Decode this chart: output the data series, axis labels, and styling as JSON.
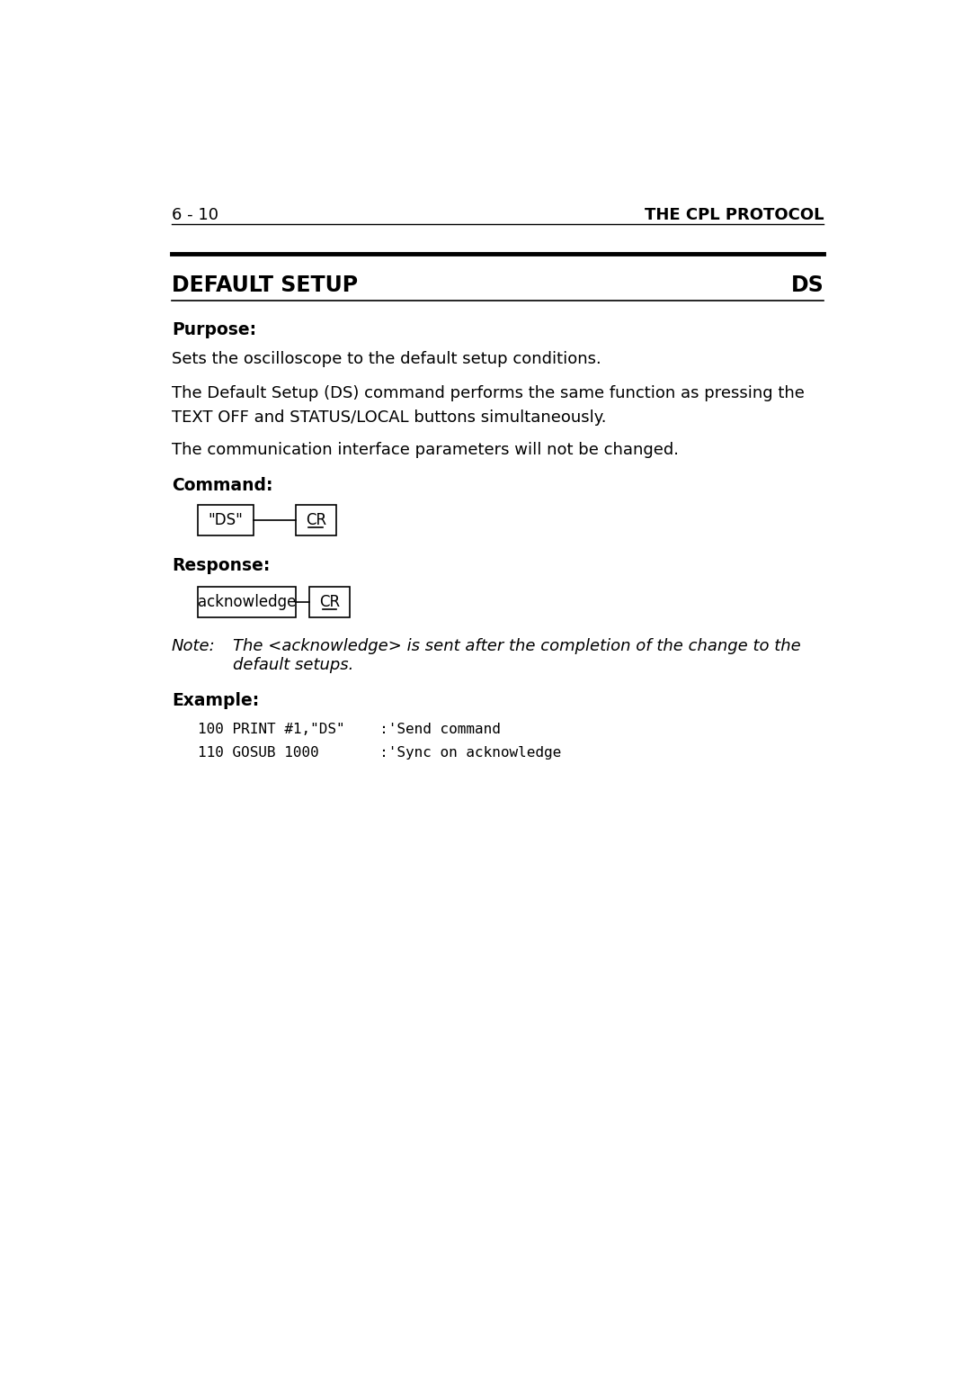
{
  "page_num": "6 - 10",
  "page_header_right": "THE CPL PROTOCOL",
  "section_title": "DEFAULT SETUP",
  "section_code": "DS",
  "purpose_label": "Purpose:",
  "purpose_text1": "Sets the oscilloscope to the default setup conditions.",
  "purpose_text2": "The Default Setup (DS) command performs the same function as pressing the\nTEXT OFF and STATUS/LOCAL buttons simultaneously.",
  "purpose_text3": "The communication interface parameters will not be changed.",
  "command_label": "Command:",
  "cmd_box1_text": "\"DS\"",
  "cmd_box2_text": "CR",
  "response_label": "Response:",
  "resp_box1_text": "acknowledge",
  "resp_box2_text": "CR",
  "note_label": "Note:",
  "note_text_line1": "The <acknowledge> is sent after the completion of the change to the",
  "note_text_line2": "default setups.",
  "example_label": "Example:",
  "example_line1": "100 PRINT #1,\"DS\"    :'Send command",
  "example_line2": "110 GOSUB 1000       :'Sync on acknowledge",
  "bg_color": "#ffffff",
  "text_color": "#000000"
}
